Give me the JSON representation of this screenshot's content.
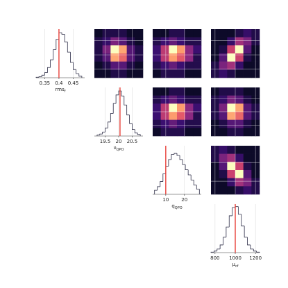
{
  "chart_data": [
    {
      "type": "histogram",
      "xlabel": "rms",
      "xlabel_sub": "f",
      "bins": [
        0.32,
        0.33,
        0.34,
        0.35,
        0.36,
        0.37,
        0.38,
        0.39,
        0.4,
        0.41,
        0.42,
        0.43,
        0.44,
        0.45,
        0.46,
        0.47,
        0.48
      ],
      "counts": [
        1,
        2,
        5,
        10,
        20,
        35,
        55,
        75,
        88,
        85,
        70,
        50,
        30,
        16,
        8,
        3
      ],
      "xlim": [
        0.32,
        0.49
      ],
      "ylim": [
        0,
        95
      ],
      "xticks": [
        0.35,
        0.4,
        0.45
      ],
      "truth": 0.4,
      "color": "#2b2b45",
      "truth_color": "#e8413a",
      "grid": true
    },
    {
      "type": "histogram",
      "xlabel": "ν",
      "xlabel_sub": "QPO",
      "bins": [
        19.2,
        19.3,
        19.4,
        19.5,
        19.6,
        19.7,
        19.8,
        19.9,
        20.0,
        20.1,
        20.2,
        20.3,
        20.4,
        20.5,
        20.6,
        20.7,
        20.8
      ],
      "counts": [
        2,
        4,
        8,
        16,
        28,
        45,
        65,
        82,
        90,
        80,
        62,
        42,
        25,
        13,
        6,
        3
      ],
      "xlim": [
        19.1,
        20.9
      ],
      "ylim": [
        0,
        97
      ],
      "xticks": [
        19.5,
        20,
        20.5
      ],
      "truth": 20.05,
      "color": "#2b2b45",
      "truth_color": "#e8413a",
      "grid": true
    },
    {
      "type": "histogram",
      "xlabel": "q",
      "xlabel_sub": "QPO",
      "bins": [
        4,
        5.5,
        7,
        8.5,
        10,
        11.5,
        13,
        14.5,
        16,
        17.5,
        19,
        20.5,
        22,
        23.5,
        25,
        26.5,
        28
      ],
      "counts": [
        8,
        15,
        25,
        40,
        55,
        68,
        78,
        80,
        76,
        68,
        58,
        48,
        38,
        28,
        18,
        10
      ],
      "xlim": [
        3,
        29
      ],
      "ylim": [
        0,
        95
      ],
      "xticks": [
        10,
        20
      ],
      "truth": 10,
      "color": "#2b2b45",
      "truth_color": "#e8413a",
      "grid": true
    },
    {
      "type": "histogram",
      "xlabel": "μ",
      "xlabel_sub": "cf",
      "bins": [
        760,
        790,
        820,
        850,
        880,
        910,
        940,
        970,
        1000,
        1030,
        1060,
        1090,
        1120,
        1150,
        1180,
        1210,
        1240
      ],
      "counts": [
        1,
        3,
        7,
        15,
        30,
        50,
        72,
        88,
        90,
        75,
        52,
        30,
        15,
        7,
        3,
        1
      ],
      "xlim": [
        760,
        1240
      ],
      "ylim": [
        0,
        95
      ],
      "xticks": [
        800,
        1000,
        1200
      ],
      "truth": 1000,
      "color": "#2b2b45",
      "truth_color": "#e8413a",
      "grid": true
    },
    {
      "type": "hist2d",
      "colormap": "magma",
      "xlim": [
        19.1,
        20.9
      ],
      "ylim": [
        0.32,
        0.49
      ],
      "xticks": [
        19.5,
        20,
        20.5
      ],
      "yticks": [
        0.35,
        0.4,
        0.45
      ],
      "grid": true,
      "z": [
        [
          0,
          1,
          1,
          1,
          0,
          0
        ],
        [
          1,
          2,
          4,
          3,
          1,
          0
        ],
        [
          1,
          4,
          9,
          8,
          3,
          1
        ],
        [
          1,
          3,
          8,
          7,
          3,
          1
        ],
        [
          0,
          1,
          3,
          3,
          1,
          0
        ],
        [
          0,
          0,
          1,
          1,
          0,
          0
        ]
      ]
    },
    {
      "type": "hist2d",
      "colormap": "magma",
      "xlim": [
        3,
        29
      ],
      "ylim": [
        0.32,
        0.49
      ],
      "xticks": [
        10,
        20
      ],
      "yticks": [
        0.35,
        0.4,
        0.45
      ],
      "grid": true,
      "z": [
        [
          0,
          0,
          1,
          1,
          0,
          0
        ],
        [
          1,
          2,
          3,
          2,
          1,
          1
        ],
        [
          2,
          5,
          8,
          7,
          4,
          2
        ],
        [
          2,
          5,
          7,
          6,
          4,
          1
        ],
        [
          1,
          2,
          3,
          2,
          1,
          1
        ],
        [
          0,
          1,
          1,
          1,
          0,
          0
        ]
      ]
    },
    {
      "type": "hist2d",
      "colormap": "magma",
      "xlim": [
        760,
        1240
      ],
      "ylim": [
        0.32,
        0.49
      ],
      "xticks": [
        800,
        1000,
        1200
      ],
      "yticks": [
        0.35,
        0.4,
        0.45
      ],
      "grid": true,
      "z": [
        [
          0,
          0,
          0,
          1,
          2,
          1
        ],
        [
          0,
          0,
          2,
          5,
          4,
          1
        ],
        [
          0,
          1,
          6,
          9,
          3,
          0
        ],
        [
          0,
          3,
          9,
          6,
          1,
          0
        ],
        [
          1,
          4,
          5,
          2,
          0,
          0
        ],
        [
          1,
          2,
          1,
          0,
          0,
          0
        ]
      ]
    },
    {
      "type": "hist2d",
      "colormap": "magma",
      "xlim": [
        3,
        29
      ],
      "ylim": [
        19.1,
        20.9
      ],
      "xticks": [
        10,
        20
      ],
      "yticks": [
        19.5,
        20,
        20.5
      ],
      "grid": true,
      "z": [
        [
          0,
          0,
          1,
          1,
          0,
          0
        ],
        [
          1,
          2,
          3,
          2,
          1,
          1
        ],
        [
          2,
          5,
          8,
          7,
          4,
          2
        ],
        [
          2,
          5,
          7,
          6,
          4,
          1
        ],
        [
          1,
          2,
          3,
          2,
          1,
          1
        ],
        [
          0,
          1,
          1,
          1,
          0,
          0
        ]
      ]
    },
    {
      "type": "hist2d",
      "colormap": "magma",
      "xlim": [
        760,
        1240
      ],
      "ylim": [
        19.1,
        20.9
      ],
      "xticks": [
        800,
        1000,
        1200
      ],
      "yticks": [
        19.5,
        20,
        20.5
      ],
      "grid": true,
      "z": [
        [
          0,
          1,
          1,
          1,
          0,
          0
        ],
        [
          1,
          2,
          4,
          3,
          1,
          0
        ],
        [
          1,
          4,
          9,
          8,
          3,
          1
        ],
        [
          1,
          3,
          8,
          7,
          3,
          1
        ],
        [
          0,
          1,
          3,
          3,
          1,
          0
        ],
        [
          0,
          0,
          1,
          1,
          0,
          0
        ]
      ]
    },
    {
      "type": "hist2d",
      "colormap": "magma",
      "xlim": [
        760,
        1240
      ],
      "ylim": [
        3,
        29
      ],
      "xticks": [
        800,
        1000,
        1200
      ],
      "yticks": [
        10,
        20
      ],
      "grid": true,
      "z": [
        [
          1,
          2,
          1,
          0,
          0,
          0
        ],
        [
          1,
          4,
          5,
          2,
          0,
          0
        ],
        [
          0,
          3,
          9,
          6,
          1,
          0
        ],
        [
          0,
          1,
          6,
          9,
          3,
          0
        ],
        [
          0,
          0,
          2,
          5,
          4,
          1
        ],
        [
          0,
          0,
          0,
          1,
          2,
          1
        ]
      ]
    }
  ]
}
